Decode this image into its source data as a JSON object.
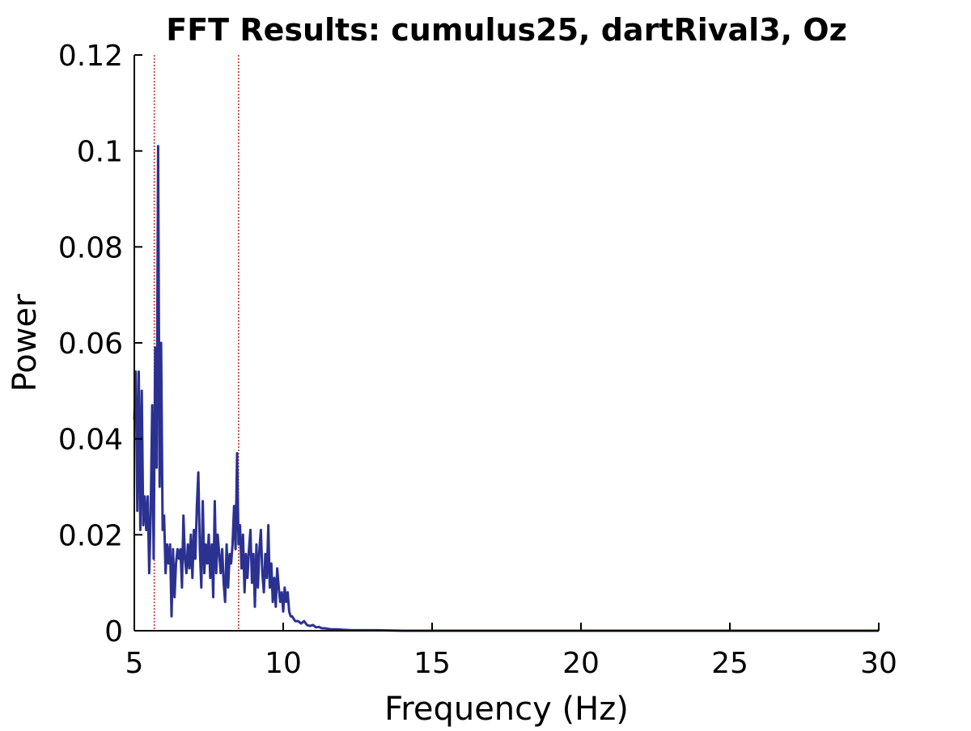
{
  "chart_data": {
    "type": "line",
    "title": "FFT Results: cumulus25, dartRival3, Oz",
    "xlabel": "Frequency (Hz)",
    "ylabel": "Power",
    "xlim": [
      5,
      30
    ],
    "ylim": [
      0,
      0.12
    ],
    "xticks": [
      5,
      10,
      15,
      20,
      25,
      30
    ],
    "yticks": [
      0,
      0.02,
      0.04,
      0.06,
      0.08,
      0.1,
      0.12
    ],
    "ytick_labels": [
      "0",
      "0.02",
      "0.04",
      "0.06",
      "0.08",
      "0.1",
      "0.12"
    ],
    "grid": false,
    "line_color": "#2b3191",
    "marker_line_color": "#cc2a2a",
    "marker_lines_x": [
      5.67,
      8.5
    ],
    "series": [
      {
        "x": [
          5.0,
          5.05,
          5.1,
          5.15,
          5.2,
          5.25,
          5.3,
          5.35,
          5.4,
          5.45,
          5.5,
          5.55,
          5.6,
          5.65,
          5.7,
          5.75,
          5.8,
          5.85,
          5.9,
          5.95,
          6.0,
          6.05,
          6.1,
          6.15,
          6.2,
          6.25,
          6.3,
          6.35,
          6.4,
          6.45,
          6.5,
          6.55,
          6.6,
          6.65,
          6.7,
          6.75,
          6.8,
          6.85,
          6.9,
          6.95,
          7.0,
          7.05,
          7.1,
          7.15,
          7.2,
          7.25,
          7.3,
          7.35,
          7.4,
          7.45,
          7.5,
          7.55,
          7.6,
          7.65,
          7.7,
          7.75,
          7.8,
          7.85,
          7.9,
          7.95,
          8.0,
          8.05,
          8.1,
          8.15,
          8.2,
          8.25,
          8.3,
          8.35,
          8.4,
          8.45,
          8.5,
          8.55,
          8.6,
          8.65,
          8.7,
          8.75,
          8.8,
          8.85,
          8.9,
          8.95,
          9.0,
          9.05,
          9.1,
          9.15,
          9.2,
          9.25,
          9.3,
          9.35,
          9.4,
          9.45,
          9.5,
          9.55,
          9.6,
          9.65,
          9.7,
          9.75,
          9.8,
          9.85,
          9.9,
          9.95,
          10.0,
          10.05,
          10.1,
          10.15,
          10.2,
          10.25,
          10.3,
          10.4,
          10.5,
          10.6,
          10.7,
          10.8,
          10.9,
          11.0,
          11.1,
          11.2,
          11.3,
          11.4,
          11.5,
          11.6,
          11.8,
          12.0,
          12.3,
          12.7,
          13.2,
          14.0,
          15.0,
          20.0,
          25.0,
          30.0
        ],
        "y": [
          0.044,
          0.054,
          0.025,
          0.054,
          0.021,
          0.05,
          0.022,
          0.028,
          0.021,
          0.028,
          0.012,
          0.024,
          0.047,
          0.015,
          0.059,
          0.034,
          0.101,
          0.03,
          0.06,
          0.021,
          0.024,
          0.012,
          0.018,
          0.014,
          0.018,
          0.003,
          0.017,
          0.007,
          0.014,
          0.017,
          0.015,
          0.017,
          0.009,
          0.024,
          0.015,
          0.012,
          0.018,
          0.013,
          0.02,
          0.011,
          0.021,
          0.015,
          0.026,
          0.033,
          0.017,
          0.009,
          0.027,
          0.012,
          0.018,
          0.014,
          0.02,
          0.011,
          0.018,
          0.007,
          0.027,
          0.012,
          0.02,
          0.016,
          0.012,
          0.017,
          0.01,
          0.006,
          0.018,
          0.009,
          0.016,
          0.014,
          0.018,
          0.026,
          0.017,
          0.037,
          0.018,
          0.022,
          0.013,
          0.02,
          0.008,
          0.016,
          0.011,
          0.017,
          0.021,
          0.01,
          0.016,
          0.005,
          0.018,
          0.009,
          0.017,
          0.021,
          0.012,
          0.008,
          0.016,
          0.011,
          0.022,
          0.009,
          0.014,
          0.006,
          0.011,
          0.005,
          0.013,
          0.009,
          0.006,
          0.008,
          0.004,
          0.009,
          0.006,
          0.008,
          0.004,
          0.003,
          0.003,
          0.002,
          0.002,
          0.0015,
          0.002,
          0.0012,
          0.001,
          0.0012,
          0.0007,
          0.0008,
          0.0005,
          0.0005,
          0.0004,
          0.0003,
          0.0003,
          0.0002,
          0.0001,
          0.0001,
          0.0001,
          0.0,
          0.0,
          0.0,
          0.0,
          0.0
        ]
      }
    ]
  }
}
